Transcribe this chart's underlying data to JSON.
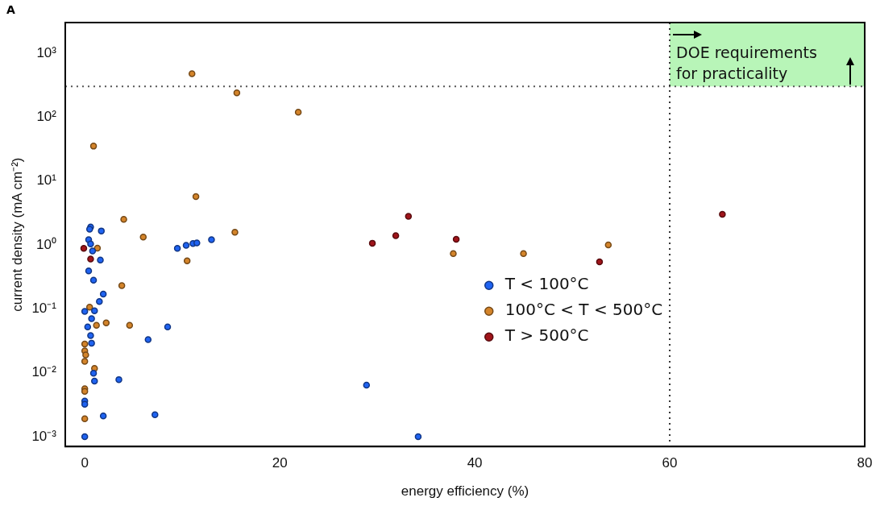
{
  "chart_data": {
    "type": "scatter",
    "xlabel": "energy efficiency (%)",
    "ylabel": "current density (mA cm⁻²)",
    "log": "y",
    "grid": false,
    "marker": "circle",
    "legend": "center",
    "xlim": [
      -2,
      80
    ],
    "xticks": [
      0,
      20,
      40,
      60,
      80
    ],
    "ylim": [
      0.0007,
      3000
    ],
    "yticks": [
      {
        "value": 0.001,
        "label": "10⁻³"
      },
      {
        "value": 0.01,
        "label": "10⁻²"
      },
      {
        "value": 0.1,
        "label": "10⁻¹"
      },
      {
        "value": 1,
        "label": "10⁰"
      },
      {
        "value": 10,
        "label": "10¹"
      },
      {
        "value": 100,
        "label": "10²"
      },
      {
        "value": 1000,
        "label": "10³"
      }
    ],
    "annotations": [
      "A"
    ],
    "ref_lines": [
      {
        "axis": "y",
        "value": 300,
        "line_style": "dotted",
        "color": "#555555"
      },
      {
        "axis": "x",
        "value": 60,
        "line_style": "dotted",
        "color": "#333333"
      }
    ],
    "bands": [
      {
        "axis": "x",
        "from": 60,
        "to": 80,
        "label": "DOE requirements for practicality",
        "color": "#b8f5b8"
      }
    ],
    "series": [
      {
        "name": "T < 100°C",
        "color": "#1f63f2",
        "x": [
          0.6,
          0.5,
          1.7,
          0.4,
          0.6,
          0.8,
          1.6,
          0.4,
          0.9,
          1.9,
          1.5,
          1.0,
          0.0,
          0.7,
          0.3,
          0.6,
          0.7,
          8.5,
          6.5,
          0.9,
          1.0,
          3.5,
          0.0,
          0.0,
          1.9,
          7.2,
          0.0,
          9.5,
          10.4,
          11.1,
          11.5,
          13.0,
          28.9,
          34.2
        ],
        "values": [
          1.9,
          1.75,
          1.65,
          1.2,
          1.03,
          0.8,
          0.58,
          0.39,
          0.28,
          0.17,
          0.13,
          0.093,
          0.091,
          0.07,
          0.052,
          0.038,
          0.029,
          0.052,
          0.033,
          0.0098,
          0.0074,
          0.0078,
          0.0036,
          0.0032,
          0.0021,
          0.0022,
          0.001,
          0.88,
          0.98,
          1.05,
          1.07,
          1.2,
          0.0064,
          0.001
        ]
      },
      {
        "name": "100°C < T < 500°C",
        "color": "#d4842a",
        "x": [
          11.0,
          15.6,
          21.9,
          0.9,
          11.4,
          4.0,
          6.0,
          10.5,
          3.8,
          1.3,
          2.2,
          4.6,
          1.2,
          0.5,
          0.0,
          0.0,
          0.1,
          0.0,
          1.0,
          0.0,
          0.0,
          0.0,
          15.4,
          37.8,
          45.0,
          53.7
        ],
        "values": [
          475,
          238,
          119,
          35,
          5.7,
          2.5,
          1.32,
          0.56,
          0.23,
          0.89,
          0.06,
          0.055,
          0.055,
          0.106,
          0.028,
          0.022,
          0.019,
          0.015,
          0.0117,
          0.0056,
          0.0051,
          0.0019,
          1.57,
          0.73,
          0.73,
          1.0
        ]
      },
      {
        "name": "T > 500°C",
        "color": "#a0141a",
        "x": [
          -0.1,
          0.6,
          29.5,
          31.9,
          33.2,
          38.1,
          52.8,
          65.4
        ],
        "values": [
          0.88,
          0.6,
          1.06,
          1.39,
          2.8,
          1.22,
          0.54,
          3.0
        ]
      }
    ]
  }
}
